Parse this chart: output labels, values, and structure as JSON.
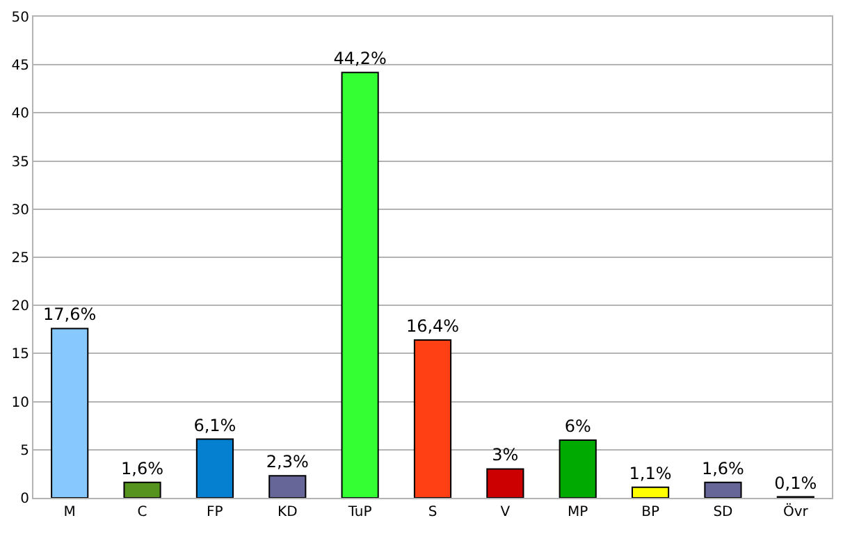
{
  "chart_data": {
    "type": "bar",
    "categories": [
      "M",
      "C",
      "FP",
      "KD",
      "TuP",
      "S",
      "V",
      "MP",
      "BP",
      "SD",
      "Övr"
    ],
    "values": [
      17.6,
      1.6,
      6.1,
      2.3,
      44.2,
      16.4,
      3,
      6,
      1.1,
      1.6,
      0.1
    ],
    "value_labels": [
      "17,6%",
      "1,6%",
      "6,1%",
      "2,3%",
      "44,2%",
      "16,4%",
      "3%",
      "6%",
      "1,1%",
      "1,6%",
      "0,1%"
    ],
    "colors": [
      "#87c8ff",
      "#56921e",
      "#0580d0",
      "#666699",
      "#33ff33",
      "#ff4015",
      "#cc0000",
      "#00aa00",
      "#ffff00",
      "#666699",
      "#000000"
    ],
    "ylim": [
      0,
      50
    ],
    "yticks": [
      0,
      5,
      10,
      15,
      20,
      25,
      30,
      35,
      40,
      45,
      50
    ],
    "grid": "y"
  }
}
